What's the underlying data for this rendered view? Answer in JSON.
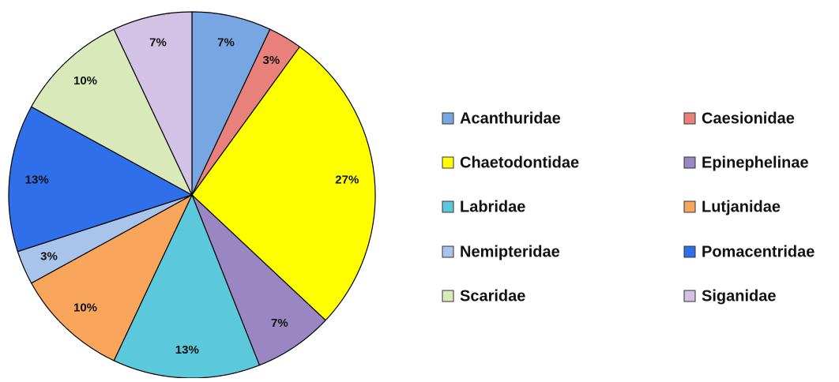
{
  "chart_data": {
    "type": "pie",
    "categories": [
      "Acanthuridae",
      "Caesionidae",
      "Chaetodontidae",
      "Epinephelinae",
      "Labridae",
      "Lutjanidae",
      "Nemipteridae",
      "Pomacentridae",
      "Scaridae",
      "Siganidae"
    ],
    "values": [
      7,
      3,
      27,
      7,
      13,
      10,
      3,
      13,
      10,
      7
    ],
    "value_labels": [
      "7%",
      "3%",
      "27%",
      "7%",
      "13%",
      "10%",
      "3%",
      "13%",
      "10%",
      "7%"
    ],
    "colors": [
      "#78a6e2",
      "#e8807b",
      "#ffff00",
      "#9a86c2",
      "#5cc8dc",
      "#f9a55c",
      "#a9c4ea",
      "#2f6fea",
      "#d9e9b9",
      "#d1c2e6"
    ],
    "legend": "right"
  }
}
